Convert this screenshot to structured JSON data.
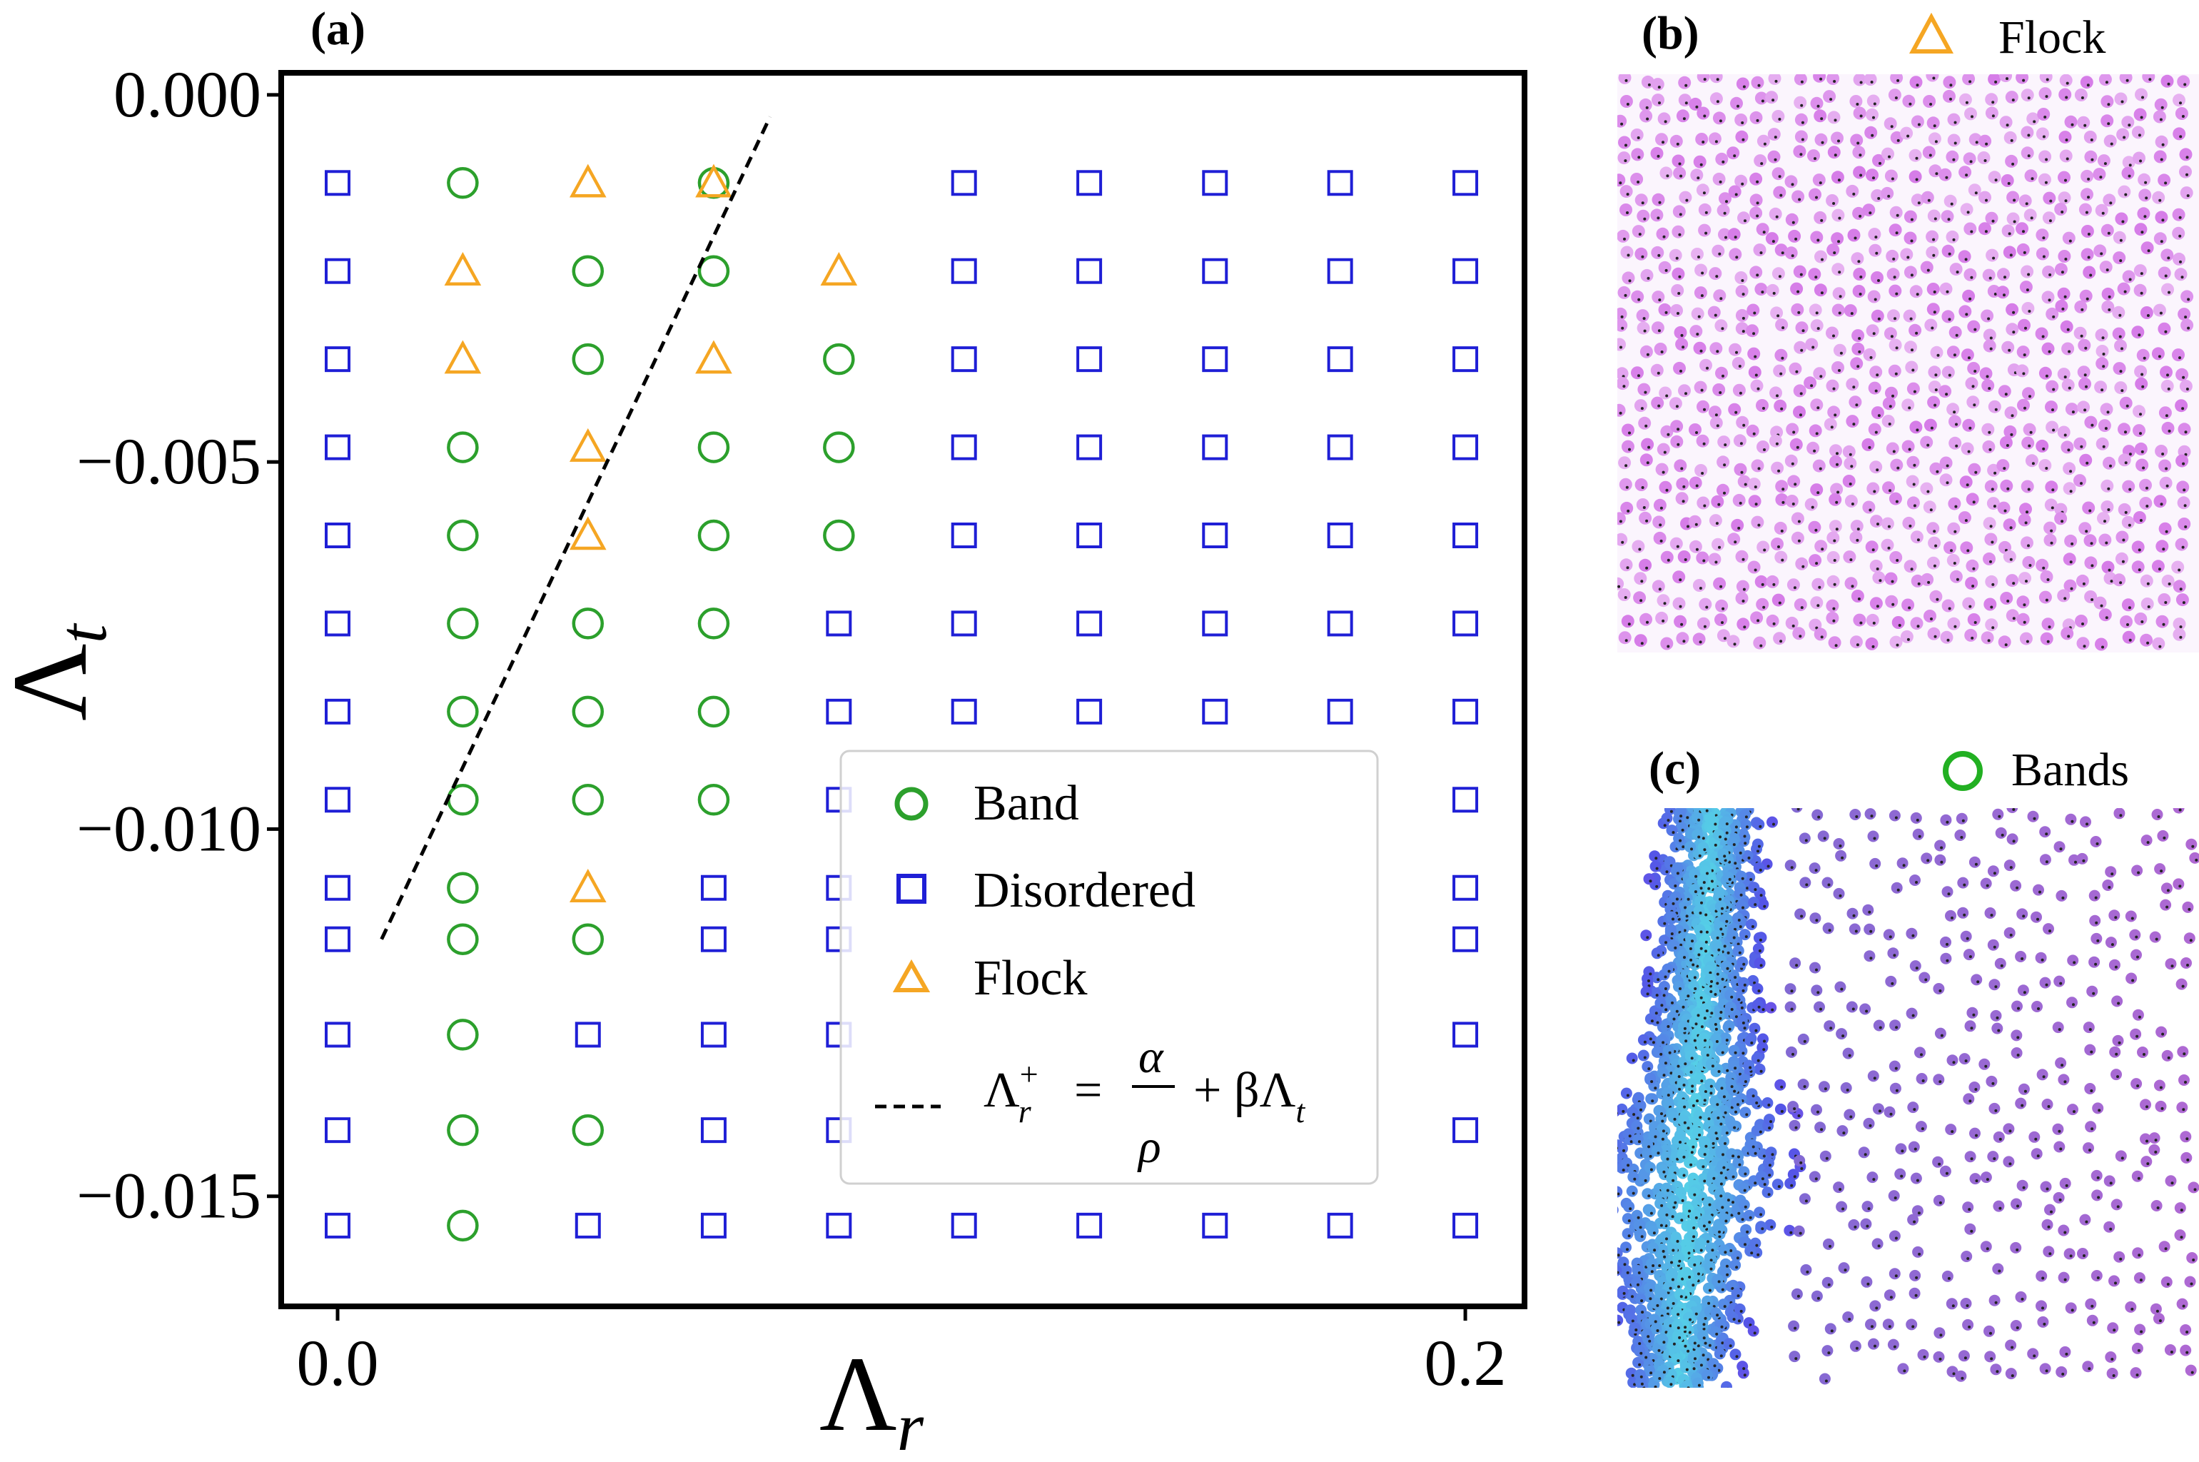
{
  "figure": {
    "colors": {
      "band": "#2ca02c",
      "disordered": "#1f1fd6",
      "flock": "#f5a623",
      "axis": "#000000",
      "boundary": "#000000"
    },
    "panel_b": {
      "label": "(b)",
      "legend_label": "Flock",
      "legend_marker": "triangle"
    },
    "panel_c": {
      "label": "(c)",
      "legend_label": "Bands",
      "legend_marker": "circle"
    }
  },
  "chart_data": {
    "type": "scatter",
    "panel_label": "(a)",
    "xlabel": "Λ",
    "xlabel_sub": "r",
    "ylabel": "Λ",
    "ylabel_sub": "t",
    "xlim": [
      -0.01,
      0.2105
    ],
    "ylim": [
      -0.0165,
      0.0003
    ],
    "xticks": [
      {
        "value": 0.0,
        "label": "0.0"
      },
      {
        "value": 0.2,
        "label": "0.2"
      }
    ],
    "yticks": [
      {
        "value": 0.0,
        "label": "0.000"
      },
      {
        "value": -0.005,
        "label": "−0.005"
      },
      {
        "value": -0.01,
        "label": "−0.010"
      },
      {
        "value": -0.015,
        "label": "−0.015"
      }
    ],
    "legend": {
      "position": "center-right",
      "entries": [
        {
          "series": "Band",
          "label": "Band"
        },
        {
          "series": "Disordered",
          "label": "Disordered"
        },
        {
          "series": "Flock",
          "label": "Flock"
        },
        {
          "series": "Boundary",
          "label": "Λ⁺ᵣ = α/ρ + βΛₜ"
        }
      ]
    },
    "legend_formula": {
      "lhs": "Λ",
      "lhs_sup": "+",
      "lhs_sub": "r",
      "eq": "=",
      "numerator": "α",
      "denominator": "ρ",
      "rhs": "+ βΛ",
      "rhs_sub": "t"
    },
    "series": [
      {
        "name": "Band",
        "marker": "circle",
        "points": [
          [
            0.0222,
            -0.0012
          ],
          [
            0.0667,
            -0.0012
          ],
          [
            0.0444,
            -0.0024
          ],
          [
            0.0667,
            -0.0024
          ],
          [
            0.0444,
            -0.0036
          ],
          [
            0.0889,
            -0.0036
          ],
          [
            0.0222,
            -0.0048
          ],
          [
            0.0667,
            -0.0048
          ],
          [
            0.0889,
            -0.0048
          ],
          [
            0.0222,
            -0.006
          ],
          [
            0.0667,
            -0.006
          ],
          [
            0.0889,
            -0.006
          ],
          [
            0.0222,
            -0.0072
          ],
          [
            0.0444,
            -0.0072
          ],
          [
            0.0667,
            -0.0072
          ],
          [
            0.0222,
            -0.0084
          ],
          [
            0.0444,
            -0.0084
          ],
          [
            0.0667,
            -0.0084
          ],
          [
            0.0222,
            -0.0096
          ],
          [
            0.0444,
            -0.0096
          ],
          [
            0.0667,
            -0.0096
          ],
          [
            0.0222,
            -0.0108
          ],
          [
            0.0222,
            -0.0115
          ],
          [
            0.0444,
            -0.0115
          ],
          [
            0.0222,
            -0.0128
          ],
          [
            0.0222,
            -0.0141
          ],
          [
            0.0444,
            -0.0141
          ],
          [
            0.0222,
            -0.0154
          ]
        ]
      },
      {
        "name": "Disordered",
        "marker": "square",
        "points": [
          [
            0,
            -0.0012
          ],
          [
            0.1111,
            -0.0012
          ],
          [
            0.1333,
            -0.0012
          ],
          [
            0.1556,
            -0.0012
          ],
          [
            0.1778,
            -0.0012
          ],
          [
            0.2,
            -0.0012
          ],
          [
            0,
            -0.0024
          ],
          [
            0.1111,
            -0.0024
          ],
          [
            0.1333,
            -0.0024
          ],
          [
            0.1556,
            -0.0024
          ],
          [
            0.1778,
            -0.0024
          ],
          [
            0.2,
            -0.0024
          ],
          [
            0,
            -0.0036
          ],
          [
            0.1111,
            -0.0036
          ],
          [
            0.1333,
            -0.0036
          ],
          [
            0.1556,
            -0.0036
          ],
          [
            0.1778,
            -0.0036
          ],
          [
            0.2,
            -0.0036
          ],
          [
            0,
            -0.0048
          ],
          [
            0.1111,
            -0.0048
          ],
          [
            0.1333,
            -0.0048
          ],
          [
            0.1556,
            -0.0048
          ],
          [
            0.1778,
            -0.0048
          ],
          [
            0.2,
            -0.0048
          ],
          [
            0,
            -0.006
          ],
          [
            0.1111,
            -0.006
          ],
          [
            0.1333,
            -0.006
          ],
          [
            0.1556,
            -0.006
          ],
          [
            0.1778,
            -0.006
          ],
          [
            0.2,
            -0.006
          ],
          [
            0,
            -0.0072
          ],
          [
            0.0889,
            -0.0072
          ],
          [
            0.1111,
            -0.0072
          ],
          [
            0.1333,
            -0.0072
          ],
          [
            0.1556,
            -0.0072
          ],
          [
            0.1778,
            -0.0072
          ],
          [
            0.2,
            -0.0072
          ],
          [
            0,
            -0.0084
          ],
          [
            0.0889,
            -0.0084
          ],
          [
            0.1111,
            -0.0084
          ],
          [
            0.1333,
            -0.0084
          ],
          [
            0.1556,
            -0.0084
          ],
          [
            0.1778,
            -0.0084
          ],
          [
            0.2,
            -0.0084
          ],
          [
            0,
            -0.0096
          ],
          [
            0.0889,
            -0.0096
          ],
          [
            0.2,
            -0.0096
          ],
          [
            0,
            -0.0108
          ],
          [
            0.0667,
            -0.0108
          ],
          [
            0.0889,
            -0.0108
          ],
          [
            0.2,
            -0.0108
          ],
          [
            0,
            -0.0115
          ],
          [
            0.0667,
            -0.0115
          ],
          [
            0.0889,
            -0.0115
          ],
          [
            0.2,
            -0.0115
          ],
          [
            0,
            -0.0128
          ],
          [
            0.0444,
            -0.0128
          ],
          [
            0.0667,
            -0.0128
          ],
          [
            0.0889,
            -0.0128
          ],
          [
            0.2,
            -0.0128
          ],
          [
            0,
            -0.0141
          ],
          [
            0.0667,
            -0.0141
          ],
          [
            0.0889,
            -0.0141
          ],
          [
            0.2,
            -0.0141
          ],
          [
            0,
            -0.0154
          ],
          [
            0.0444,
            -0.0154
          ],
          [
            0.0667,
            -0.0154
          ],
          [
            0.0889,
            -0.0154
          ],
          [
            0.1111,
            -0.0154
          ],
          [
            0.1333,
            -0.0154
          ],
          [
            0.1556,
            -0.0154
          ],
          [
            0.1778,
            -0.0154
          ],
          [
            0.2,
            -0.0154
          ]
        ]
      },
      {
        "name": "Flock",
        "marker": "triangle",
        "points": [
          [
            0.0444,
            -0.0012
          ],
          [
            0.0667,
            -0.0012
          ],
          [
            0.0222,
            -0.0024
          ],
          [
            0.0889,
            -0.0024
          ],
          [
            0.0222,
            -0.0036
          ],
          [
            0.0667,
            -0.0036
          ],
          [
            0.0444,
            -0.0048
          ],
          [
            0.0444,
            -0.006
          ],
          [
            0.0444,
            -0.0108
          ]
        ]
      },
      {
        "name": "Boundary",
        "marker": "dashed-line",
        "points": [
          [
            0.0078,
            -0.0115
          ],
          [
            0.0767,
            -0.0003
          ]
        ]
      }
    ]
  }
}
